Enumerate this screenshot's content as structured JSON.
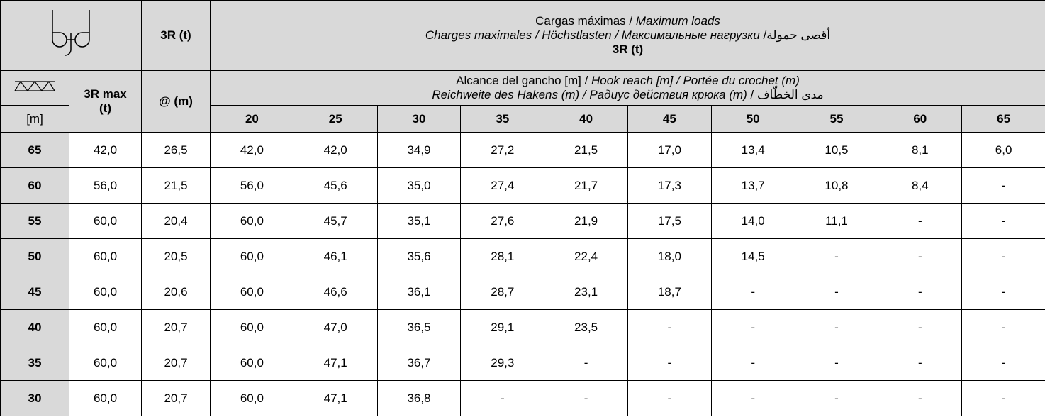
{
  "header": {
    "hook_col": "3R (t)",
    "title": [
      [
        {
          "text": "Cargas máximas / "
        },
        {
          "text": "Maximum loads",
          "italic": true
        }
      ],
      [
        {
          "text": "Charges maximales / Höchstlasten / Максимальные нагрузки",
          "italic": true
        },
        {
          "text": " /أقصى حمولة"
        }
      ]
    ],
    "subtitle": "3R (t)"
  },
  "subheader": {
    "unit": "[m]",
    "max_col": "3R max (t)",
    "at_col": "@ (m)",
    "reach": [
      [
        {
          "text": "Alcance del gancho [m] / "
        },
        {
          "text": "Hook reach [m] / Portée du crochet (m)",
          "italic": true
        }
      ],
      [
        {
          "text": "Reichweite des Hakens (m) / Радиус действия крюка (m)",
          "italic": true
        },
        {
          "text": " / مدى الخطّاف"
        }
      ]
    ],
    "reaches": [
      "20",
      "25",
      "30",
      "35",
      "40",
      "45",
      "50",
      "55",
      "60",
      "65"
    ]
  },
  "rows": [
    [
      "65",
      "42,0",
      "26,5",
      "42,0",
      "42,0",
      "34,9",
      "27,2",
      "21,5",
      "17,0",
      "13,4",
      "10,5",
      "8,1",
      "6,0"
    ],
    [
      "60",
      "56,0",
      "21,5",
      "56,0",
      "45,6",
      "35,0",
      "27,4",
      "21,7",
      "17,3",
      "13,7",
      "10,8",
      "8,4",
      "-"
    ],
    [
      "55",
      "60,0",
      "20,4",
      "60,0",
      "45,7",
      "35,1",
      "27,6",
      "21,9",
      "17,5",
      "14,0",
      "11,1",
      "-",
      "-"
    ],
    [
      "50",
      "60,0",
      "20,5",
      "60,0",
      "46,1",
      "35,6",
      "28,1",
      "22,4",
      "18,0",
      "14,5",
      "-",
      "-",
      "-"
    ],
    [
      "45",
      "60,0",
      "20,6",
      "60,0",
      "46,6",
      "36,1",
      "28,7",
      "23,1",
      "18,7",
      "-",
      "-",
      "-",
      "-"
    ],
    [
      "40",
      "60,0",
      "20,7",
      "60,0",
      "47,0",
      "36,5",
      "29,1",
      "23,5",
      "-",
      "-",
      "-",
      "-",
      "-"
    ],
    [
      "35",
      "60,0",
      "20,7",
      "60,0",
      "47,1",
      "36,7",
      "29,3",
      "-",
      "-",
      "-",
      "-",
      "-",
      "-"
    ],
    [
      "30",
      "60,0",
      "20,7",
      "60,0",
      "47,1",
      "36,8",
      "-",
      "-",
      "-",
      "-",
      "-",
      "-",
      "-"
    ]
  ]
}
